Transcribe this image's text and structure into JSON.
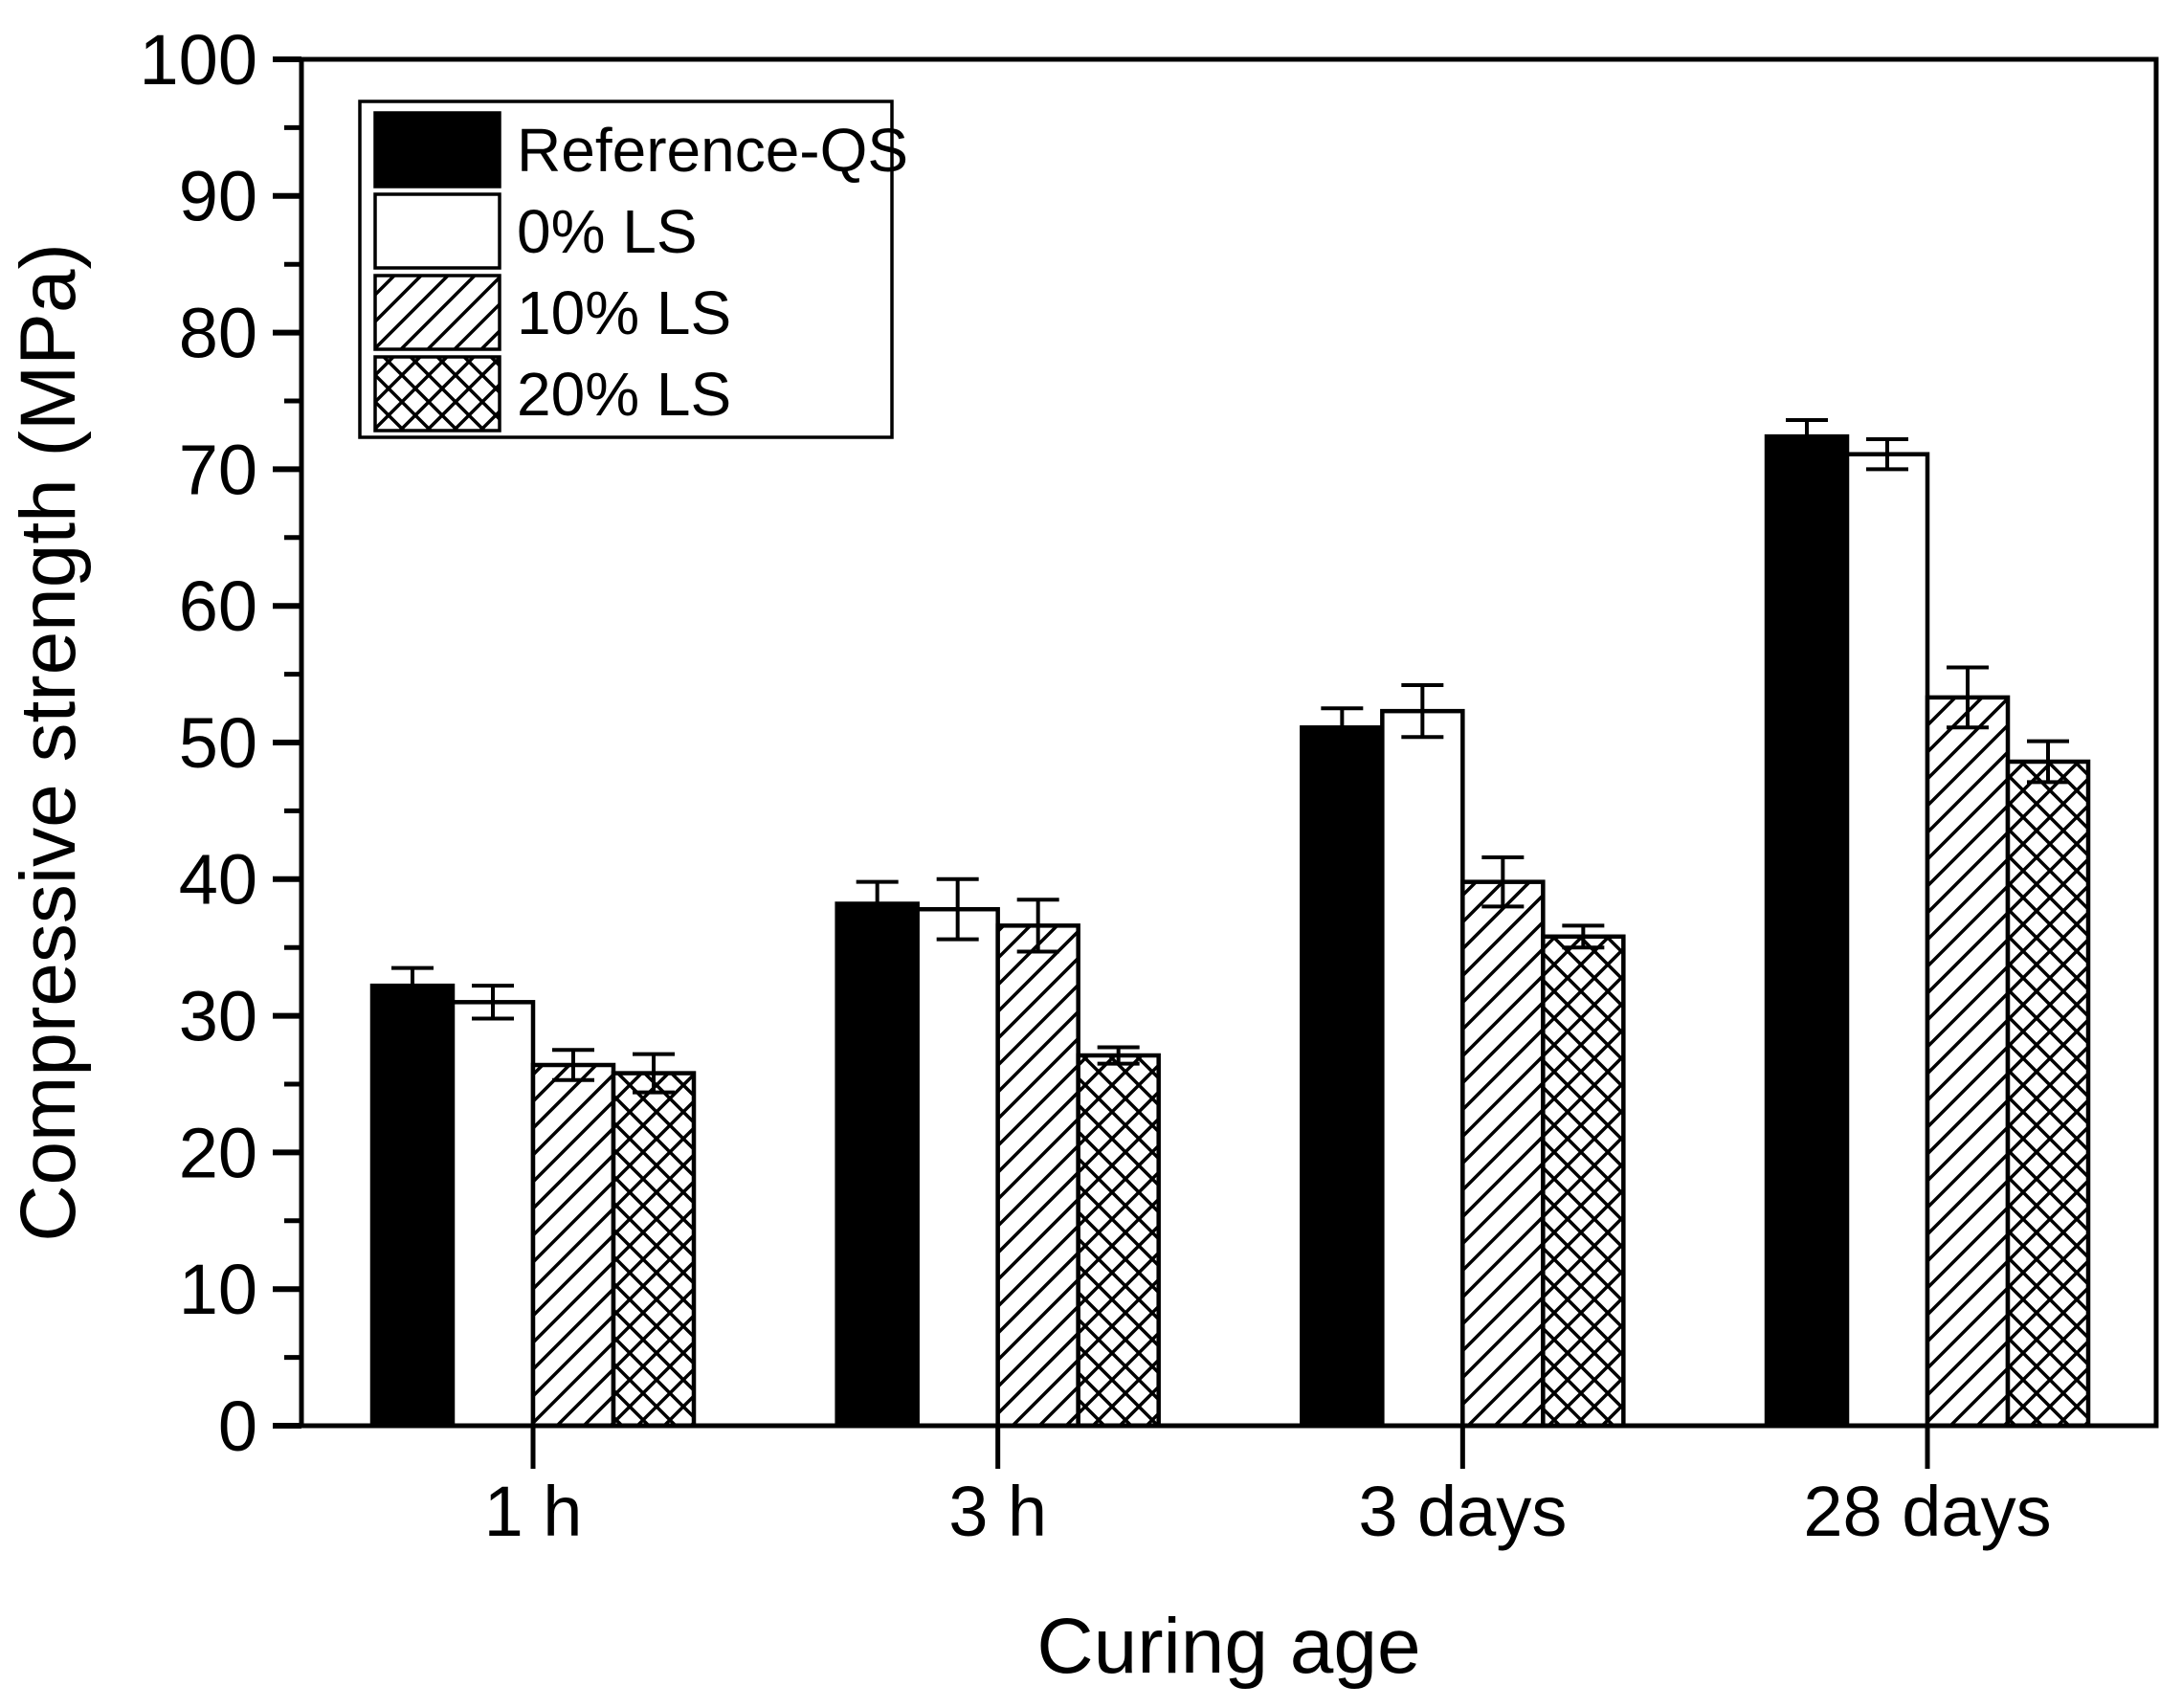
{
  "chart_data": {
    "type": "bar",
    "title": "",
    "xlabel": "Curing age",
    "ylabel": "Compressive strength (MPa)",
    "categories": [
      "1 h",
      "3 h",
      "3 days",
      "28 days"
    ],
    "series": [
      {
        "name": "Reference-QS",
        "pattern": "solid-black",
        "values": [
          32.2,
          38.2,
          51.1,
          72.4
        ],
        "errors": [
          1.3,
          1.6,
          1.4,
          1.2
        ]
      },
      {
        "name": "0% LS",
        "pattern": "white",
        "values": [
          31.0,
          37.8,
          52.3,
          71.1
        ],
        "errors": [
          1.2,
          2.2,
          1.9,
          1.1
        ]
      },
      {
        "name": "10% LS",
        "pattern": "diagonal-hatch",
        "values": [
          26.4,
          36.6,
          39.8,
          53.3
        ],
        "errors": [
          1.1,
          1.9,
          1.8,
          2.2
        ]
      },
      {
        "name": "20% LS",
        "pattern": "cross-hatch",
        "values": [
          25.8,
          27.1,
          35.8,
          48.6
        ],
        "errors": [
          1.4,
          0.6,
          0.8,
          1.5
        ]
      }
    ],
    "y_axis": {
      "min": 0,
      "max": 100,
      "major_step": 10,
      "minor_step": 5,
      "tick_labels": [
        "0",
        "10",
        "20",
        "30",
        "40",
        "50",
        "60",
        "70",
        "80",
        "90",
        "100"
      ]
    },
    "x_axis": {
      "tick_labels": [
        "1 h",
        "3 h",
        "3 days",
        "28 days"
      ]
    },
    "legend": {
      "position": "top-left",
      "entries": [
        "Reference-QS",
        "0% LS",
        "10% LS",
        "20% LS"
      ]
    },
    "grid": "off",
    "colors": {
      "foreground": "#000000",
      "background": "#ffffff"
    }
  }
}
